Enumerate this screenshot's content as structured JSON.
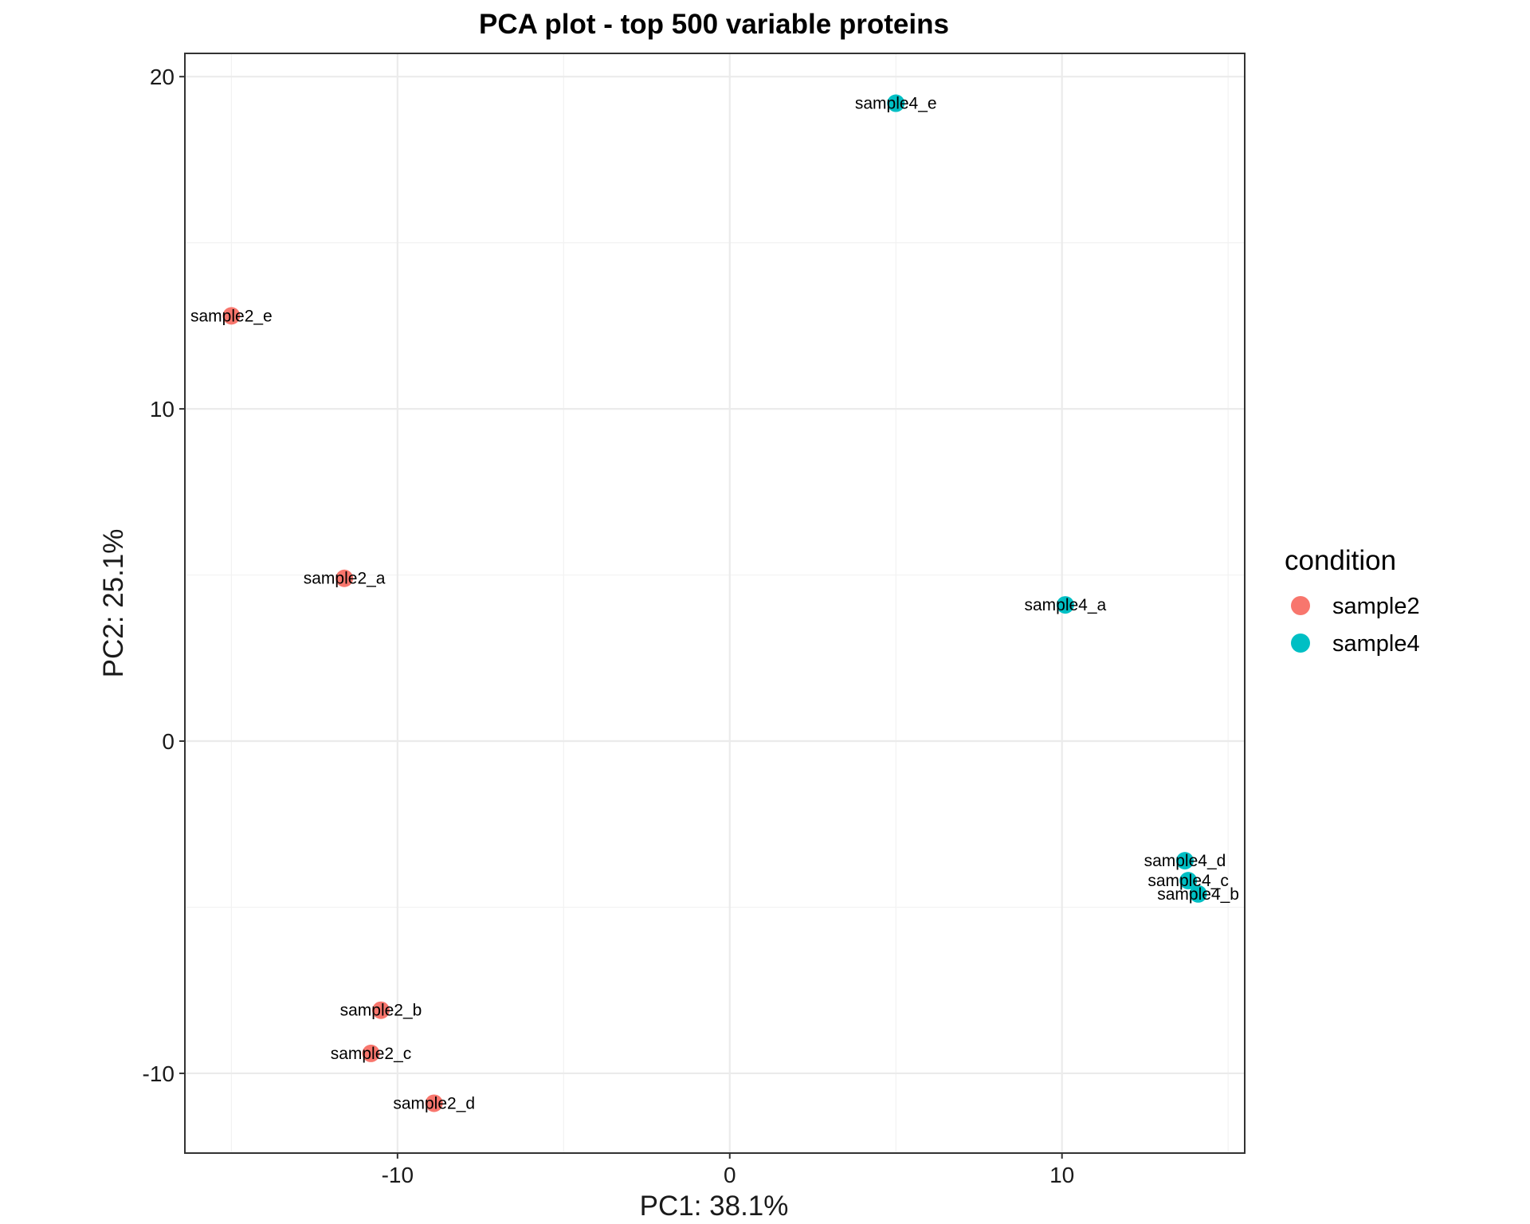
{
  "chart_data": {
    "type": "scatter",
    "title": "PCA plot - top 500 variable proteins",
    "xlabel": "PC1: 38.1%",
    "ylabel": "PC2: 25.1%",
    "xlim": [
      -16.4,
      15.5
    ],
    "ylim": [
      -12.4,
      20.7
    ],
    "x_ticks": [
      -10,
      0,
      10
    ],
    "x_tick_labels": [
      "-10",
      "0",
      "10"
    ],
    "y_ticks": [
      -10,
      0,
      10,
      20
    ],
    "y_tick_labels": [
      "-10",
      "0",
      "10",
      "20"
    ],
    "grid": true,
    "legend_position": "right",
    "legend_title": "condition",
    "series": [
      {
        "name": "sample2",
        "color": "#F8766D",
        "points": [
          {
            "label": "sample2_e",
            "x": -15.0,
            "y": 12.8
          },
          {
            "label": "sample2_a",
            "x": -11.6,
            "y": 4.9
          },
          {
            "label": "sample2_b",
            "x": -10.5,
            "y": -8.1
          },
          {
            "label": "sample2_c",
            "x": -10.8,
            "y": -9.4
          },
          {
            "label": "sample2_d",
            "x": -8.9,
            "y": -10.9
          }
        ]
      },
      {
        "name": "sample4",
        "color": "#00BFC4",
        "points": [
          {
            "label": "sample4_e",
            "x": 5.0,
            "y": 19.2
          },
          {
            "label": "sample4_a",
            "x": 10.1,
            "y": 4.1
          },
          {
            "label": "sample4_d",
            "x": 13.7,
            "y": -3.6
          },
          {
            "label": "sample4_c",
            "x": 13.8,
            "y": -4.2
          },
          {
            "label": "sample4_b",
            "x": 14.1,
            "y": -4.6
          }
        ]
      }
    ]
  }
}
